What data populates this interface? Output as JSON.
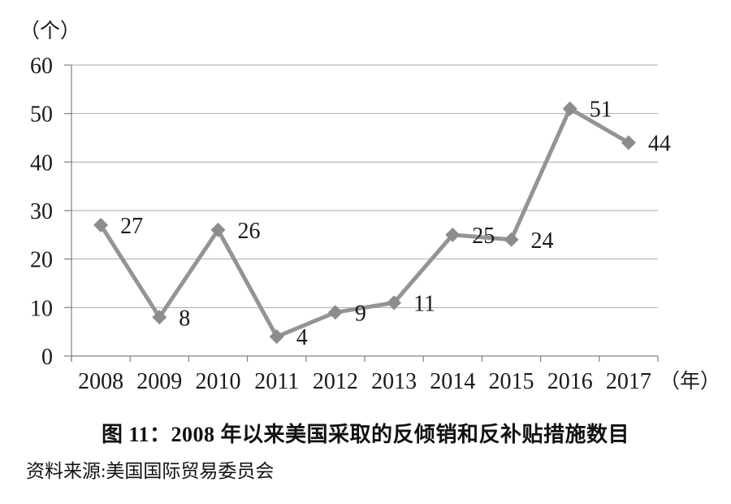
{
  "figure": {
    "title": "图 11：2008 年以来美国采取的反倾销和反补贴措施数目",
    "source": "资料来源:美国国际贸易委员会"
  },
  "chart_data": {
    "type": "line",
    "title": "图 11：2008 年以来美国采取的反倾销和反补贴措施数目",
    "source": "资料来源:美国国际贸易委员会",
    "y_unit_label": "（个）",
    "x_unit_label": "（年）",
    "categories": [
      "2008",
      "2009",
      "2010",
      "2011",
      "2012",
      "2013",
      "2014",
      "2015",
      "2016",
      "2017"
    ],
    "values": [
      27,
      8,
      26,
      4,
      9,
      11,
      25,
      24,
      51,
      44
    ],
    "ylim": [
      0,
      60
    ],
    "yticks": [
      0,
      10,
      20,
      30,
      40,
      50,
      60
    ],
    "grid": "horizontal",
    "legend": "none",
    "marker": "diamond",
    "line_color": "#949494",
    "marker_color": "#8c8c8c",
    "gridline_color": "#a9a9a9",
    "axis_color": "#808080",
    "text_color": "#1a1a1a"
  }
}
